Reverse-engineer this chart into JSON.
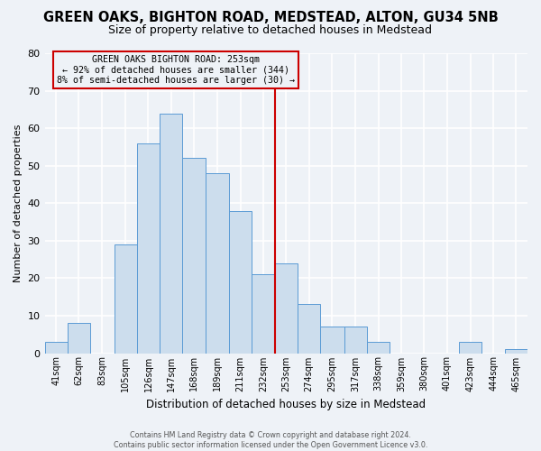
{
  "title": "GREEN OAKS, BIGHTON ROAD, MEDSTEAD, ALTON, GU34 5NB",
  "subtitle": "Size of property relative to detached houses in Medstead",
  "xlabel": "Distribution of detached houses by size in Medstead",
  "ylabel": "Number of detached properties",
  "bin_labels": [
    "41sqm",
    "62sqm",
    "83sqm",
    "105sqm",
    "126sqm",
    "147sqm",
    "168sqm",
    "189sqm",
    "211sqm",
    "232sqm",
    "253sqm",
    "274sqm",
    "295sqm",
    "317sqm",
    "338sqm",
    "359sqm",
    "380sqm",
    "401sqm",
    "423sqm",
    "444sqm",
    "465sqm"
  ],
  "bin_edges": [
    41,
    62,
    83,
    105,
    126,
    147,
    168,
    189,
    211,
    232,
    253,
    274,
    295,
    317,
    338,
    359,
    380,
    401,
    423,
    444,
    465,
    486
  ],
  "bar_heights": [
    3,
    8,
    0,
    29,
    56,
    64,
    52,
    48,
    38,
    21,
    24,
    13,
    7,
    7,
    3,
    0,
    0,
    0,
    3,
    0,
    1
  ],
  "bar_color": "#ccdded",
  "bar_edge_color": "#5b9bd5",
  "vline_x": 253,
  "vline_color": "#cc0000",
  "annotation_title": "GREEN OAKS BIGHTON ROAD: 253sqm",
  "annotation_line1": "← 92% of detached houses are smaller (344)",
  "annotation_line2": "8% of semi-detached houses are larger (30) →",
  "annotation_box_color": "#cc0000",
  "ylim": [
    0,
    80
  ],
  "yticks": [
    0,
    10,
    20,
    30,
    40,
    50,
    60,
    70,
    80
  ],
  "footer1": "Contains HM Land Registry data © Crown copyright and database right 2024.",
  "footer2": "Contains public sector information licensed under the Open Government Licence v3.0.",
  "background_color": "#eef2f7",
  "grid_color": "#ffffff",
  "title_fontsize": 10.5,
  "subtitle_fontsize": 9
}
